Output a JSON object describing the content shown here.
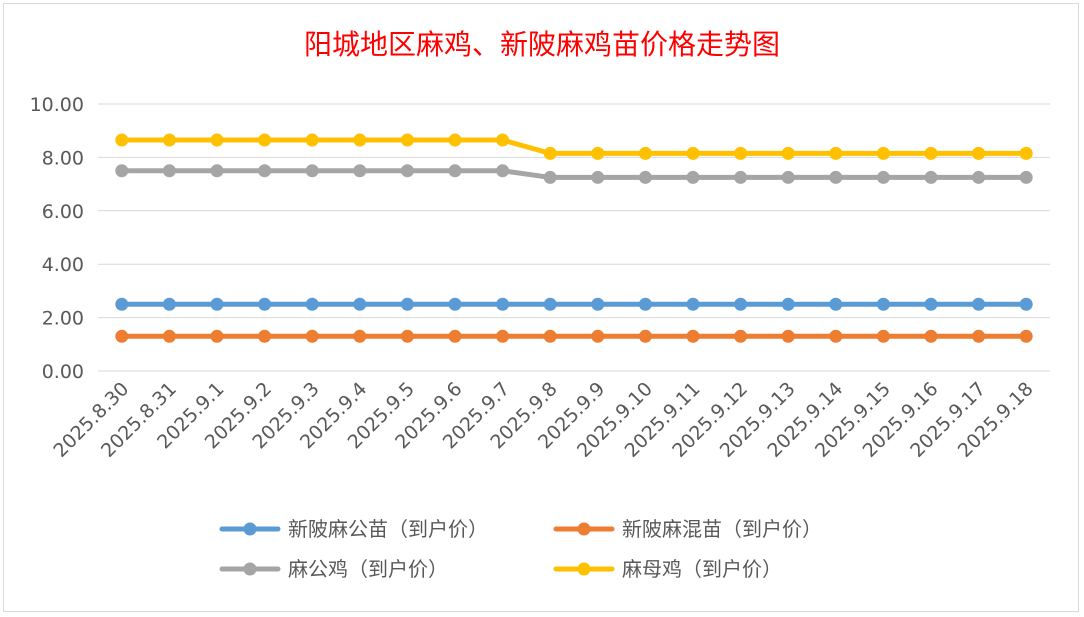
{
  "chart_data": {
    "type": "line",
    "title": "阳城地区麻鸡、新陂麻鸡苗价格走势图",
    "xlabel": "",
    "ylabel": "",
    "ylim": [
      0,
      10
    ],
    "yticks": [
      "0.00",
      "2.00",
      "4.00",
      "6.00",
      "8.00",
      "10.00"
    ],
    "grid": true,
    "legend_position": "bottom",
    "categories": [
      "2025.8.30",
      "2025.8.31",
      "2025.9.1",
      "2025.9.2",
      "2025.9.3",
      "2025.9.4",
      "2025.9.5",
      "2025.9.6",
      "2025.9.7",
      "2025.9.8",
      "2025.9.9",
      "2025.9.10",
      "2025.9.11",
      "2025.9.12",
      "2025.9.13",
      "2025.9.14",
      "2025.9.15",
      "2025.9.16",
      "2025.9.17",
      "2025.9.18"
    ],
    "series": [
      {
        "name": "新陂麻公苗（到户价）",
        "color": "#5b9bd5",
        "values": [
          2.5,
          2.5,
          2.5,
          2.5,
          2.5,
          2.5,
          2.5,
          2.5,
          2.5,
          2.5,
          2.5,
          2.5,
          2.5,
          2.5,
          2.5,
          2.5,
          2.5,
          2.5,
          2.5,
          2.5
        ]
      },
      {
        "name": "新陂麻混苗（到户价）",
        "color": "#ed7d31",
        "values": [
          1.3,
          1.3,
          1.3,
          1.3,
          1.3,
          1.3,
          1.3,
          1.3,
          1.3,
          1.3,
          1.3,
          1.3,
          1.3,
          1.3,
          1.3,
          1.3,
          1.3,
          1.3,
          1.3,
          1.3
        ]
      },
      {
        "name": "麻公鸡（到户价）",
        "color": "#a5a5a5",
        "values": [
          7.5,
          7.5,
          7.5,
          7.5,
          7.5,
          7.5,
          7.5,
          7.5,
          7.5,
          7.25,
          7.25,
          7.25,
          7.25,
          7.25,
          7.25,
          7.25,
          7.25,
          7.25,
          7.25,
          7.25
        ]
      },
      {
        "name": "麻母鸡（到户价）",
        "color": "#ffc000",
        "values": [
          8.65,
          8.65,
          8.65,
          8.65,
          8.65,
          8.65,
          8.65,
          8.65,
          8.65,
          8.15,
          8.15,
          8.15,
          8.15,
          8.15,
          8.15,
          8.15,
          8.15,
          8.15,
          8.15,
          8.15
        ]
      }
    ]
  }
}
